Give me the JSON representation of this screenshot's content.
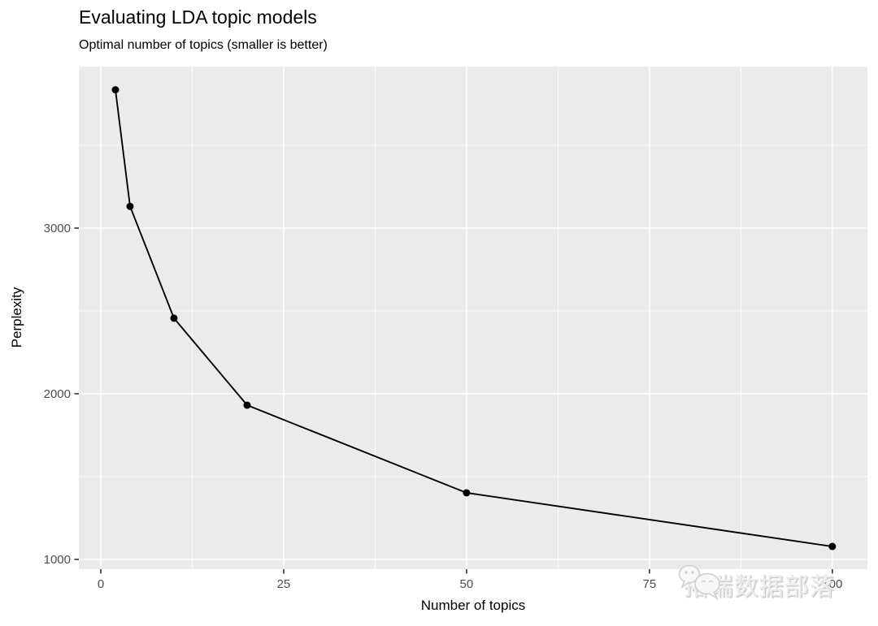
{
  "header": {
    "title": "Evaluating LDA topic models",
    "subtitle": "Optimal number of topics (smaller is better)"
  },
  "chart_data": {
    "type": "line",
    "title": "Evaluating LDA topic models",
    "subtitle": "Optimal number of topics (smaller is better)",
    "xlabel": "Number of topics",
    "ylabel": "Perplexity",
    "x": [
      2,
      4,
      10,
      20,
      50,
      100
    ],
    "y": [
      3835,
      3131,
      2456,
      1931,
      1402,
      1078
    ],
    "x_ticks": [
      0,
      25,
      50,
      75,
      100
    ],
    "x_tick_labels": [
      "0",
      "25",
      "50",
      "75",
      "100"
    ],
    "y_ticks": [
      1000,
      2000,
      3000
    ],
    "y_tick_labels": [
      "1000",
      "2000",
      "3000"
    ],
    "xlim": [
      -3,
      104.8
    ],
    "ylim": [
      941,
      3975
    ],
    "grid": "major-and-minor-white-on-gray",
    "legend": "none",
    "colors": {
      "line": "#000000",
      "point": "#000000",
      "panel_bg": "#EBEBEB",
      "gridline": "#FFFFFF",
      "tick_mark": "#333333",
      "tick_label": "#4D4D4D",
      "axis_title": "#000000",
      "title": "#000000"
    }
  },
  "watermark": {
    "logo": "wechat-chat-bubbles-icon",
    "text": "拓端数据部落"
  }
}
